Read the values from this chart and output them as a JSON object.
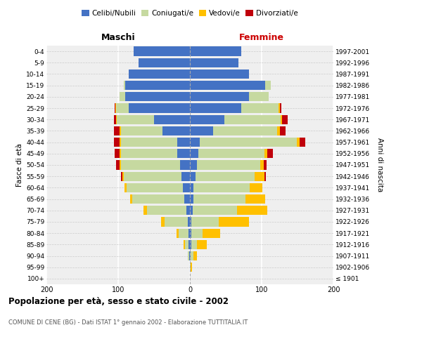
{
  "age_groups": [
    "100+",
    "95-99",
    "90-94",
    "85-89",
    "80-84",
    "75-79",
    "70-74",
    "65-69",
    "60-64",
    "55-59",
    "50-54",
    "45-49",
    "40-44",
    "35-39",
    "30-34",
    "25-29",
    "20-24",
    "15-19",
    "10-14",
    "5-9",
    "0-4"
  ],
  "birth_years": [
    "≤ 1901",
    "1902-1906",
    "1907-1911",
    "1912-1916",
    "1917-1921",
    "1922-1926",
    "1927-1931",
    "1932-1936",
    "1937-1941",
    "1942-1946",
    "1947-1951",
    "1952-1956",
    "1957-1961",
    "1962-1966",
    "1967-1971",
    "1972-1976",
    "1977-1981",
    "1982-1986",
    "1987-1991",
    "1992-1996",
    "1997-2001"
  ],
  "male_celibi": [
    0,
    0,
    1,
    2,
    2,
    3,
    5,
    8,
    10,
    12,
    14,
    18,
    18,
    38,
    50,
    85,
    90,
    90,
    85,
    72,
    78
  ],
  "male_coniugati": [
    0,
    0,
    2,
    5,
    14,
    32,
    55,
    72,
    78,
    80,
    82,
    78,
    78,
    58,
    52,
    18,
    8,
    2,
    0,
    0,
    0
  ],
  "male_vedovi": [
    0,
    0,
    0,
    2,
    3,
    5,
    5,
    3,
    3,
    2,
    2,
    2,
    2,
    2,
    1,
    1,
    0,
    0,
    0,
    0,
    0
  ],
  "male_divorziati": [
    0,
    0,
    0,
    0,
    0,
    0,
    0,
    0,
    0,
    2,
    5,
    7,
    8,
    8,
    3,
    1,
    0,
    0,
    0,
    0,
    0
  ],
  "female_nubili": [
    0,
    0,
    1,
    2,
    2,
    2,
    4,
    5,
    5,
    8,
    10,
    12,
    14,
    32,
    48,
    72,
    82,
    105,
    82,
    68,
    72
  ],
  "female_coniugate": [
    0,
    1,
    4,
    8,
    16,
    38,
    62,
    72,
    78,
    82,
    88,
    92,
    135,
    90,
    78,
    52,
    28,
    8,
    0,
    0,
    0
  ],
  "female_vedove": [
    0,
    2,
    5,
    14,
    24,
    42,
    42,
    28,
    18,
    14,
    5,
    4,
    4,
    3,
    2,
    1,
    0,
    0,
    0,
    0,
    0
  ],
  "female_divorziate": [
    0,
    0,
    0,
    0,
    0,
    0,
    0,
    0,
    0,
    2,
    4,
    8,
    8,
    8,
    8,
    2,
    0,
    0,
    0,
    0,
    0
  ],
  "color_celibi": "#4472c4",
  "color_coniugati": "#c6d9a0",
  "color_vedovi": "#ffc000",
  "color_divorziati": "#c0000b",
  "title": "Popolazione per età, sesso e stato civile - 2002",
  "subtitle": "COMUNE DI CENE (BG) - Dati ISTAT 1° gennaio 2002 - Elaborazione TUTTITALIA.IT",
  "label_maschi": "Maschi",
  "label_femmine": "Femmine",
  "ylabel_left": "Fasce di età",
  "ylabel_right": "Anni di nascita",
  "legend_labels": [
    "Celibi/Nubili",
    "Coniugati/e",
    "Vedovi/e",
    "Divorziati/e"
  ],
  "bg_color": "#efefef",
  "xlim": 200
}
